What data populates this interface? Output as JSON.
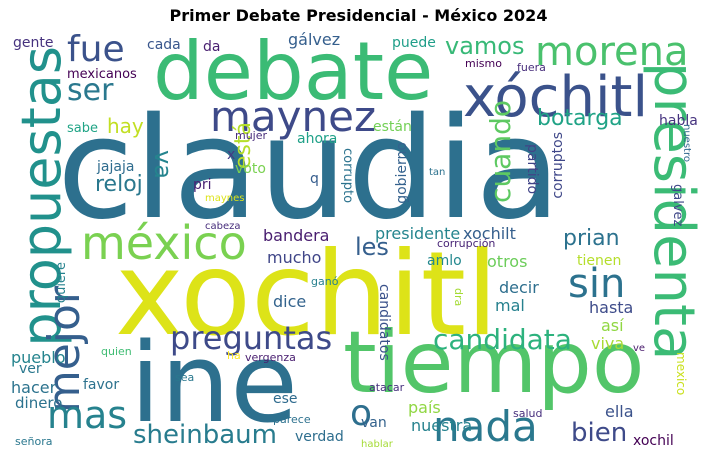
{
  "title": "Primer Debate Presidencial - México 2024",
  "words": [
    {
      "text": "claudia",
      "color": "#2d708e"
    },
    {
      "text": "xochitl",
      "color": "#dde318"
    },
    {
      "text": "debate",
      "color": "#3bbb75"
    },
    {
      "text": "ine",
      "color": "#2d708e"
    },
    {
      "text": "tiempo",
      "color": "#52c569"
    },
    {
      "text": "xóchitl",
      "color": "#3b528b"
    },
    {
      "text": "morena",
      "color": "#4ac16d"
    },
    {
      "text": "presidenta",
      "color": "#3bbb75"
    },
    {
      "text": "propuestas",
      "color": "#21918c"
    },
    {
      "text": "méxico",
      "color": "#7ad151"
    },
    {
      "text": "maynez",
      "color": "#3e4a89"
    },
    {
      "text": "fue",
      "color": "#3b528b"
    },
    {
      "text": "ser",
      "color": "#2a788e"
    },
    {
      "text": "nada",
      "color": "#2a788e"
    },
    {
      "text": "sin",
      "color": "#2c728e"
    },
    {
      "text": "mejor",
      "color": "#355f8d"
    },
    {
      "text": "preguntas",
      "color": "#3e4a89"
    },
    {
      "text": "candidata",
      "color": "#2db27d"
    },
    {
      "text": "sheinbaum",
      "color": "#287c8e"
    },
    {
      "text": "mas",
      "color": "#26828e"
    },
    {
      "text": "o",
      "color": "#2e6f8e"
    },
    {
      "text": "bien",
      "color": "#3e4a89"
    },
    {
      "text": "vamos",
      "color": "#38b977"
    },
    {
      "text": "cuando",
      "color": "#5ec962"
    },
    {
      "text": "botarga",
      "color": "#20a386"
    },
    {
      "text": "prian",
      "color": "#2c728e"
    },
    {
      "text": "les",
      "color": "#355f8d"
    },
    {
      "text": "reloj",
      "color": "#2a788e"
    },
    {
      "text": "hay",
      "color": "#c2df23"
    },
    {
      "text": "está",
      "color": "#b5de2b"
    },
    {
      "text": "va",
      "color": "#25848e"
    },
    {
      "text": "gálvez",
      "color": "#355f8d"
    },
    {
      "text": "puede",
      "color": "#1f9e89"
    },
    {
      "text": "cada",
      "color": "#39568c"
    },
    {
      "text": "da",
      "color": "#481f70"
    },
    {
      "text": "gente",
      "color": "#46327e"
    },
    {
      "text": "mexicanos",
      "color": "#440154"
    },
    {
      "text": "sabe",
      "color": "#20a486"
    },
    {
      "text": "mismo",
      "color": "#440154"
    },
    {
      "text": "fuera",
      "color": "#472d7b"
    },
    {
      "text": "habla",
      "color": "#46337f"
    },
    {
      "text": "nuestro",
      "color": "#31688e"
    },
    {
      "text": "mujer",
      "color": "#472c7a"
    },
    {
      "text": "ahora",
      "color": "#1fa188"
    },
    {
      "text": "están",
      "color": "#73d056"
    },
    {
      "text": "corrupto",
      "color": "#2c738e"
    },
    {
      "text": "gobierno",
      "color": "#34618d"
    },
    {
      "text": "partido",
      "color": "#414487"
    },
    {
      "text": "corruptos",
      "color": "#3f4788"
    },
    {
      "text": "jajaja",
      "color": "#2f6c8e"
    },
    {
      "text": "pri",
      "color": "#482173"
    },
    {
      "text": "voto",
      "color": "#7ad151"
    },
    {
      "text": "x",
      "color": "#443b84"
    },
    {
      "text": "q",
      "color": "#365d8d"
    },
    {
      "text": "tan",
      "color": "#2c728e"
    },
    {
      "text": "maynes",
      "color": "#dde318"
    },
    {
      "text": "cabeza",
      "color": "#472d7b"
    },
    {
      "text": "bandera",
      "color": "#481d6f"
    },
    {
      "text": "presidente",
      "color": "#25858e"
    },
    {
      "text": "xochilt",
      "color": "#355f8d"
    },
    {
      "text": "corrupción",
      "color": "#482576"
    },
    {
      "text": "galvez",
      "color": "#3f4788"
    },
    {
      "text": "mucho",
      "color": "#404688"
    },
    {
      "text": "amlo",
      "color": "#23888e"
    },
    {
      "text": "otros",
      "color": "#6ccd5a"
    },
    {
      "text": "tienen",
      "color": "#b5de2b"
    },
    {
      "text": "quiere",
      "color": "#26828e"
    },
    {
      "text": "ganó",
      "color": "#27808e"
    },
    {
      "text": "dra",
      "color": "#a5db36"
    },
    {
      "text": "dice",
      "color": "#33638d"
    },
    {
      "text": "decir",
      "color": "#2e6f8e"
    },
    {
      "text": "mal",
      "color": "#26818e"
    },
    {
      "text": "hasta",
      "color": "#3e4c8a"
    },
    {
      "text": "así",
      "color": "#90d743"
    },
    {
      "text": "candidatos",
      "color": "#3b528b"
    },
    {
      "text": "viva",
      "color": "#a8db34"
    },
    {
      "text": "ve",
      "color": "#481a6c"
    },
    {
      "text": "pueblo",
      "color": "#25848e"
    },
    {
      "text": "quien",
      "color": "#3fbc73"
    },
    {
      "text": "ha",
      "color": "#fde725"
    },
    {
      "text": "vergenza",
      "color": "#481d6f"
    },
    {
      "text": "mexico",
      "color": "#cae11f"
    },
    {
      "text": "ver",
      "color": "#2a788e"
    },
    {
      "text": "hacer",
      "color": "#2c738e"
    },
    {
      "text": "favor",
      "color": "#2c728e"
    },
    {
      "text": "sea",
      "color": "#2a788e"
    },
    {
      "text": "dinero",
      "color": "#2c728e"
    },
    {
      "text": "ese",
      "color": "#2f6b8e"
    },
    {
      "text": "país",
      "color": "#90d743"
    },
    {
      "text": "nuestra",
      "color": "#26828e"
    },
    {
      "text": "ella",
      "color": "#3b528b"
    },
    {
      "text": "atacar",
      "color": "#46307e"
    },
    {
      "text": "parece",
      "color": "#2d718e"
    },
    {
      "text": "salud",
      "color": "#472f7d"
    },
    {
      "text": "van",
      "color": "#33628d"
    },
    {
      "text": "xochil",
      "color": "#440154"
    },
    {
      "text": "verdad",
      "color": "#2e6e8e"
    },
    {
      "text": "señora",
      "color": "#2a778e"
    },
    {
      "text": "hablar",
      "color": "#a5db36"
    }
  ]
}
